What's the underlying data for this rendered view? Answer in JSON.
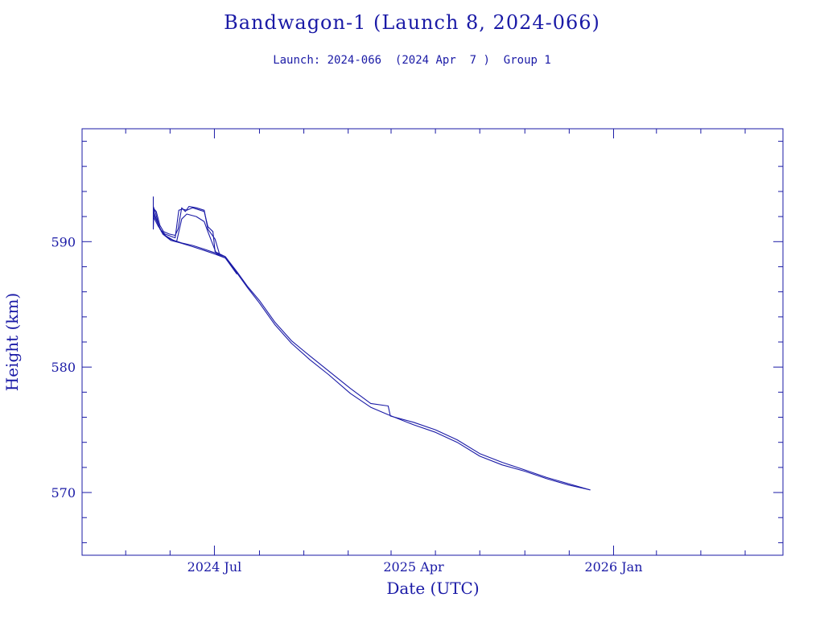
{
  "title": "Bandwagon-1 (Launch 8, 2024-066)",
  "subtitle": "Launch: 2024-066  (2024 Apr  7 )  Group 1",
  "colors": {
    "ink": "#1a1aa6",
    "background": "#ffffff"
  },
  "chart_data": {
    "type": "line",
    "title": "Bandwagon-1 (Launch 8, 2024-066)",
    "subtitle": "Launch: 2024-066  (2024 Apr  7 )  Group 1",
    "xlabel": "Date (UTC)",
    "ylabel": "Height (km)",
    "x_type": "date",
    "xlim": [
      "2024-01-01",
      "2026-08-22"
    ],
    "ylim": [
      565,
      599
    ],
    "x_ticks": [
      {
        "date": "2024-07-01",
        "label": "2024 Jul"
      },
      {
        "date": "2025-04-01",
        "label": "2025 Apr"
      },
      {
        "date": "2026-01-01",
        "label": "2026 Jan"
      }
    ],
    "y_ticks": [
      {
        "value": 570,
        "label": "570"
      },
      {
        "value": 580,
        "label": "580"
      },
      {
        "value": 590,
        "label": "590"
      }
    ],
    "grid": false,
    "legend": "none",
    "series": [
      {
        "points": [
          [
            "2024-04-08",
            593.6
          ],
          [
            "2024-04-08",
            591.0
          ],
          [
            "2024-04-09",
            592.6
          ],
          [
            "2024-04-12",
            592.4
          ],
          [
            "2024-04-17",
            591.3
          ],
          [
            "2024-04-22",
            590.8
          ],
          [
            "2024-04-30",
            590.6
          ],
          [
            "2024-05-08",
            590.5
          ],
          [
            "2024-05-12",
            591.0
          ],
          [
            "2024-05-17",
            592.7
          ],
          [
            "2024-05-22",
            592.4
          ],
          [
            "2024-05-27",
            592.8
          ],
          [
            "2024-06-06",
            592.7
          ],
          [
            "2024-06-17",
            592.5
          ],
          [
            "2024-06-22",
            591.0
          ],
          [
            "2024-07-02",
            590.2
          ],
          [
            "2024-07-08",
            589.0
          ],
          [
            "2024-07-16",
            588.8
          ],
          [
            "2024-08-01",
            587.6
          ],
          [
            "2024-08-16",
            586.4
          ],
          [
            "2024-09-01",
            585.3
          ],
          [
            "2024-09-22",
            583.6
          ],
          [
            "2024-10-15",
            582.1
          ],
          [
            "2024-11-09",
            580.9
          ],
          [
            "2024-12-05",
            579.7
          ],
          [
            "2025-01-04",
            578.3
          ],
          [
            "2025-02-01",
            577.1
          ],
          [
            "2025-02-25",
            576.9
          ],
          [
            "2025-02-28",
            576.1
          ],
          [
            "2025-04-01",
            575.6
          ],
          [
            "2025-05-01",
            575.0
          ],
          [
            "2025-05-31",
            574.2
          ],
          [
            "2025-07-01",
            573.1
          ],
          [
            "2025-08-01",
            572.4
          ],
          [
            "2025-09-01",
            571.8
          ],
          [
            "2025-10-01",
            571.2
          ],
          [
            "2025-10-31",
            570.7
          ],
          [
            "2025-11-30",
            570.2
          ]
        ]
      },
      {
        "points": [
          [
            "2024-04-08",
            592.8
          ],
          [
            "2024-04-11",
            592.3
          ],
          [
            "2024-04-17",
            591.0
          ],
          [
            "2024-04-24",
            590.6
          ],
          [
            "2024-05-08",
            590.3
          ],
          [
            "2024-05-13",
            592.5
          ],
          [
            "2024-05-18",
            592.6
          ],
          [
            "2024-05-24",
            592.5
          ],
          [
            "2024-06-01",
            592.7
          ],
          [
            "2024-06-17",
            592.4
          ],
          [
            "2024-06-22",
            591.2
          ],
          [
            "2024-06-29",
            590.8
          ],
          [
            "2024-07-02",
            589.2
          ],
          [
            "2024-07-16",
            588.8
          ],
          [
            "2024-08-01",
            587.5
          ],
          [
            "2024-08-16",
            586.3
          ],
          [
            "2024-09-01",
            585.1
          ],
          [
            "2024-09-22",
            583.4
          ],
          [
            "2024-10-15",
            581.9
          ],
          [
            "2024-11-09",
            580.6
          ],
          [
            "2024-12-05",
            579.4
          ],
          [
            "2025-01-04",
            577.9
          ],
          [
            "2025-02-01",
            576.8
          ],
          [
            "2025-02-25",
            576.2
          ],
          [
            "2025-04-01",
            575.4
          ],
          [
            "2025-05-01",
            574.8
          ],
          [
            "2025-05-31",
            574.0
          ],
          [
            "2025-07-01",
            572.9
          ],
          [
            "2025-08-01",
            572.2
          ],
          [
            "2025-09-01",
            571.7
          ],
          [
            "2025-10-01",
            571.1
          ],
          [
            "2025-10-31",
            570.6
          ],
          [
            "2025-11-30",
            570.2
          ]
        ]
      },
      {
        "points": [
          [
            "2024-04-08",
            592.5
          ],
          [
            "2024-04-12",
            591.8
          ],
          [
            "2024-04-19",
            590.8
          ],
          [
            "2024-04-28",
            590.3
          ],
          [
            "2024-05-10",
            590.0
          ],
          [
            "2024-05-17",
            591.8
          ],
          [
            "2024-05-24",
            592.2
          ],
          [
            "2024-06-06",
            592.0
          ],
          [
            "2024-06-17",
            591.6
          ],
          [
            "2024-06-22",
            590.8
          ],
          [
            "2024-07-04",
            589.0
          ],
          [
            "2024-07-16",
            588.7
          ],
          [
            "2024-08-01",
            587.5
          ]
        ]
      },
      {
        "points": [
          [
            "2024-04-08",
            592.2
          ],
          [
            "2024-04-13",
            591.6
          ],
          [
            "2024-04-21",
            590.6
          ],
          [
            "2024-05-02",
            590.1
          ],
          [
            "2024-05-15",
            589.9
          ],
          [
            "2024-06-01",
            589.6
          ],
          [
            "2024-06-17",
            589.3
          ],
          [
            "2024-07-02",
            589.0
          ],
          [
            "2024-07-16",
            588.7
          ],
          [
            "2024-08-01",
            587.4
          ]
        ]
      },
      {
        "points": [
          [
            "2024-04-08",
            592.0
          ],
          [
            "2024-04-15",
            591.2
          ],
          [
            "2024-04-24",
            590.5
          ],
          [
            "2024-05-06",
            590.1
          ],
          [
            "2024-05-17",
            589.9
          ],
          [
            "2024-06-01",
            589.7
          ],
          [
            "2024-06-17",
            589.4
          ],
          [
            "2024-07-02",
            589.1
          ],
          [
            "2024-07-16",
            588.8
          ]
        ]
      }
    ]
  }
}
